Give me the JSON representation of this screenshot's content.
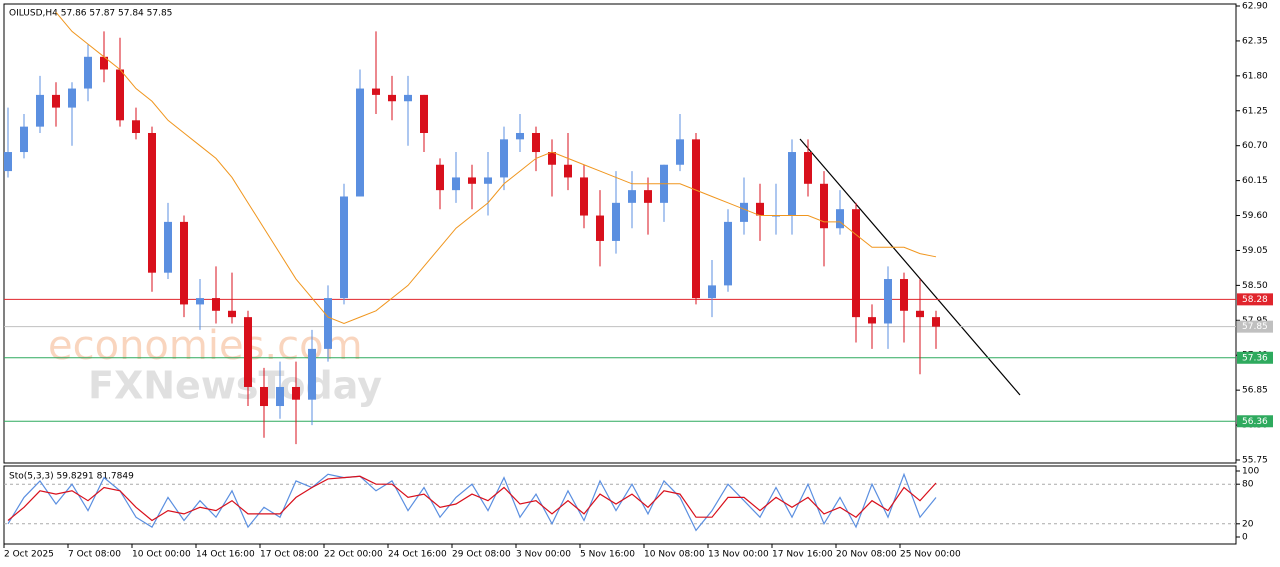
{
  "chart_data": [
    {
      "type": "candlestick",
      "header": "OILUSD,H4  57.86 57.87 57.84 57.85",
      "categories": [
        "2 Oct 2025",
        null,
        null,
        null,
        "7 Oct 08:00",
        null,
        null,
        null,
        "10 Oct 00:00",
        null,
        null,
        null,
        "14 Oct 16:00",
        null,
        null,
        null,
        "17 Oct 08:00",
        null,
        null,
        null,
        "22 Oct 00:00",
        null,
        null,
        null,
        "24 Oct 16:00",
        null,
        null,
        null,
        "29 Oct 08:00",
        null,
        null,
        null,
        "3 Nov 00:00",
        null,
        null,
        null,
        "5 Nov 16:00",
        null,
        null,
        null,
        "10 Nov 08:00",
        null,
        null,
        null,
        "13 Nov 00:00",
        null,
        null,
        null,
        "17 Nov 16:00",
        null,
        null,
        null,
        "20 Nov 08:00",
        null,
        null,
        null,
        "25 Nov 00:00",
        null,
        null
      ],
      "open": [
        60.3,
        60.6,
        61.0,
        61.5,
        61.3,
        61.6,
        62.1,
        61.9,
        61.1,
        60.9,
        58.7,
        59.5,
        58.2,
        58.3,
        58.1,
        58.0,
        56.9,
        56.6,
        56.9,
        56.7,
        57.5,
        58.3,
        59.9,
        61.6,
        61.5,
        61.4,
        61.5,
        60.4,
        60.0,
        60.2,
        60.1,
        60.2,
        60.8,
        60.9,
        60.6,
        60.4,
        60.2,
        59.6,
        59.2,
        59.8,
        60.0,
        59.8,
        60.4,
        60.8,
        58.3,
        58.5,
        59.5,
        59.8,
        59.6,
        59.6,
        60.6,
        60.1,
        59.4,
        59.7,
        58.0,
        57.9,
        58.6,
        58.1,
        58.0
      ],
      "high": [
        61.3,
        61.2,
        61.8,
        61.7,
        61.7,
        62.3,
        62.5,
        62.4,
        61.3,
        61.0,
        59.8,
        59.6,
        58.6,
        58.8,
        58.7,
        58.1,
        57.2,
        57.3,
        57.3,
        57.8,
        58.5,
        60.1,
        61.9,
        62.5,
        61.8,
        61.8,
        61.5,
        60.5,
        60.6,
        60.4,
        60.6,
        61.0,
        61.2,
        61.0,
        60.8,
        60.9,
        60.4,
        60.0,
        60.3,
        60.3,
        60.2,
        60.4,
        61.2,
        60.9,
        58.9,
        59.7,
        60.2,
        60.1,
        60.1,
        60.8,
        60.8,
        60.3,
        60.0,
        59.8,
        58.2,
        58.8,
        58.7,
        58.6,
        58.1
      ],
      "low": [
        60.2,
        60.5,
        60.9,
        61.0,
        60.7,
        61.4,
        61.7,
        61.0,
        60.8,
        58.4,
        58.6,
        58.0,
        57.8,
        57.9,
        57.9,
        56.6,
        56.1,
        56.4,
        56.0,
        56.3,
        57.3,
        58.2,
        59.9,
        61.2,
        61.1,
        60.7,
        60.6,
        59.7,
        59.8,
        59.7,
        59.6,
        60.0,
        60.6,
        60.3,
        59.9,
        60.0,
        59.4,
        58.8,
        59.0,
        59.4,
        59.3,
        59.5,
        60.3,
        58.2,
        58.0,
        58.4,
        59.3,
        59.2,
        59.3,
        59.3,
        59.9,
        58.8,
        59.3,
        57.6,
        57.5,
        57.5,
        57.6,
        57.1,
        57.5
      ],
      "close": [
        60.6,
        61.0,
        61.5,
        61.3,
        61.6,
        62.1,
        61.9,
        61.1,
        60.9,
        58.7,
        59.5,
        58.2,
        58.3,
        58.1,
        58.0,
        56.9,
        56.6,
        56.9,
        56.7,
        57.5,
        58.3,
        59.9,
        61.6,
        61.5,
        61.4,
        61.5,
        60.9,
        60.0,
        60.2,
        60.1,
        60.2,
        60.8,
        60.9,
        60.6,
        60.4,
        60.2,
        59.6,
        59.2,
        59.8,
        60.0,
        59.8,
        60.4,
        60.8,
        58.3,
        58.5,
        59.5,
        59.8,
        59.6,
        59.6,
        60.6,
        60.1,
        59.4,
        59.7,
        58.0,
        57.9,
        58.6,
        58.1,
        58.0,
        57.85
      ],
      "up_color": "#5b8fe0",
      "down_color": "#d8101c",
      "moving_average": {
        "color": "#f0961e",
        "values": [
          null,
          null,
          null,
          62.8,
          62.5,
          62.3,
          62.1,
          61.9,
          61.6,
          61.4,
          61.1,
          60.9,
          60.7,
          60.5,
          60.2,
          59.8,
          59.4,
          59.0,
          58.6,
          58.3,
          58.0,
          57.9,
          58.0,
          58.1,
          58.3,
          58.5,
          58.8,
          59.1,
          59.4,
          59.6,
          59.8,
          60.1,
          60.3,
          60.5,
          60.6,
          60.5,
          60.4,
          60.3,
          60.2,
          60.1,
          60.1,
          60.1,
          60.1,
          60.0,
          59.9,
          59.8,
          59.7,
          59.6,
          59.6,
          59.6,
          59.6,
          59.5,
          59.5,
          59.3,
          59.1,
          59.1,
          59.1,
          59.0,
          58.95
        ]
      },
      "levels": [
        {
          "value": 58.28,
          "color": "#e0242c"
        },
        {
          "value": 57.85,
          "color": "#c0c0c0"
        },
        {
          "value": 57.36,
          "color": "#2eaa5e"
        },
        {
          "value": 56.36,
          "color": "#2eaa5e"
        }
      ],
      "ylim": [
        55.75,
        62.9
      ],
      "yticks": [
        {
          "value": 62.9,
          "label": "62.90"
        },
        62.35,
        {
          "value": 61.8,
          "label": "61.80"
        },
        61.25,
        {
          "value": 60.7,
          "label": "60.70"
        },
        60.15,
        {
          "value": 59.6,
          "label": "59.60"
        },
        59.05,
        {
          "value": 58.5,
          "label": "58.50"
        },
        57.95,
        {
          "value": 57.4,
          "label": "57.40"
        },
        56.85,
        {
          "value": 56.3,
          "label": "56.30"
        },
        55.75
      ]
    },
    {
      "type": "stochastic",
      "label": "Sto(5,3,3) 59.8291 81.7849",
      "series": [
        {
          "color": "#5b8fe0",
          "values": [
            20,
            60,
            85,
            50,
            80,
            40,
            90,
            70,
            30,
            15,
            60,
            25,
            55,
            30,
            70,
            15,
            45,
            30,
            85,
            75,
            95,
            90,
            92,
            70,
            85,
            40,
            75,
            30,
            60,
            80,
            40,
            90,
            30,
            65,
            20,
            70,
            25,
            85,
            40,
            80,
            35,
            85,
            60,
            10,
            40,
            80,
            55,
            30,
            75,
            30,
            80,
            20,
            60,
            15,
            80,
            30,
            95,
            30,
            59.83
          ]
        },
        {
          "color": "#d8101c",
          "values": [
            25,
            45,
            70,
            65,
            70,
            55,
            75,
            70,
            45,
            25,
            40,
            35,
            45,
            40,
            55,
            35,
            35,
            35,
            60,
            75,
            88,
            90,
            92,
            80,
            80,
            60,
            65,
            45,
            50,
            65,
            55,
            75,
            50,
            55,
            35,
            55,
            35,
            65,
            50,
            65,
            45,
            70,
            65,
            30,
            30,
            60,
            60,
            40,
            60,
            45,
            60,
            35,
            45,
            30,
            55,
            40,
            75,
            55,
            81.78
          ]
        }
      ],
      "ylim": [
        0,
        100
      ],
      "yticks": [
        0,
        20,
        80,
        100
      ]
    }
  ],
  "watermark": {
    "line1": "economies.com",
    "line2": "FXNewsToday"
  }
}
